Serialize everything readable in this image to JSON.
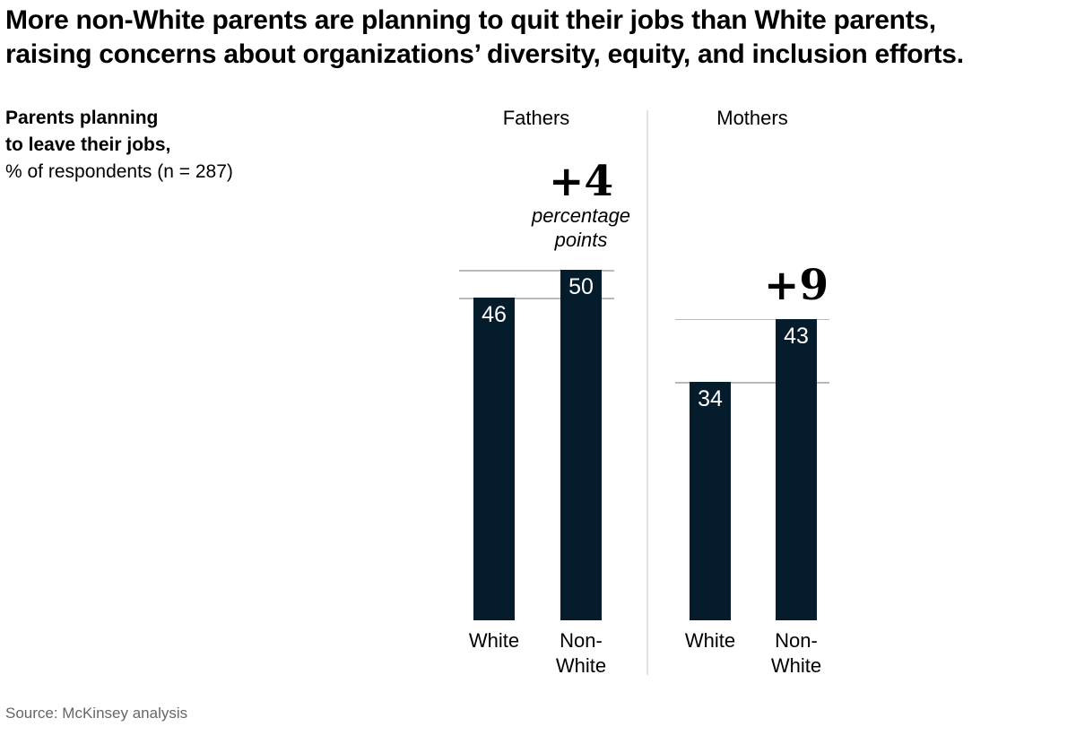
{
  "title": {
    "line1": "More non-White parents are planning to quit their jobs than White parents,",
    "line2": "raising concerns about organizations’ diversity, equity, and inclusion efforts."
  },
  "chart_label": {
    "bold_line1": "Parents planning",
    "bold_line2": "to leave their jobs,",
    "unit_line": "% of respondents (n = 287)"
  },
  "source": "Source: McKinsey analysis",
  "colors": {
    "bar": "#051c2c",
    "reference_line": "#b9b9b9",
    "divider": "#e3e3e3",
    "value_label": "#ffffff",
    "source_text": "#666666"
  },
  "chart_data": {
    "type": "bar",
    "title": "Parents planning to leave their jobs",
    "ylabel": "% of respondents (n = 287)",
    "ylim": [
      0,
      50
    ],
    "grid": "gray reference line at the top of each bar, spanning its group",
    "legend_position": "none",
    "bar_color": "#051c2c",
    "groups": [
      {
        "label": "Fathers",
        "categories": [
          "White",
          "Non-\nWhite"
        ],
        "values": [
          46,
          50
        ],
        "delta_label": "+4",
        "delta_unit": "percentage\npoints"
      },
      {
        "label": "Mothers",
        "categories": [
          "White",
          "Non-\nWhite"
        ],
        "values": [
          34,
          43
        ],
        "delta_label": "+9"
      }
    ]
  }
}
